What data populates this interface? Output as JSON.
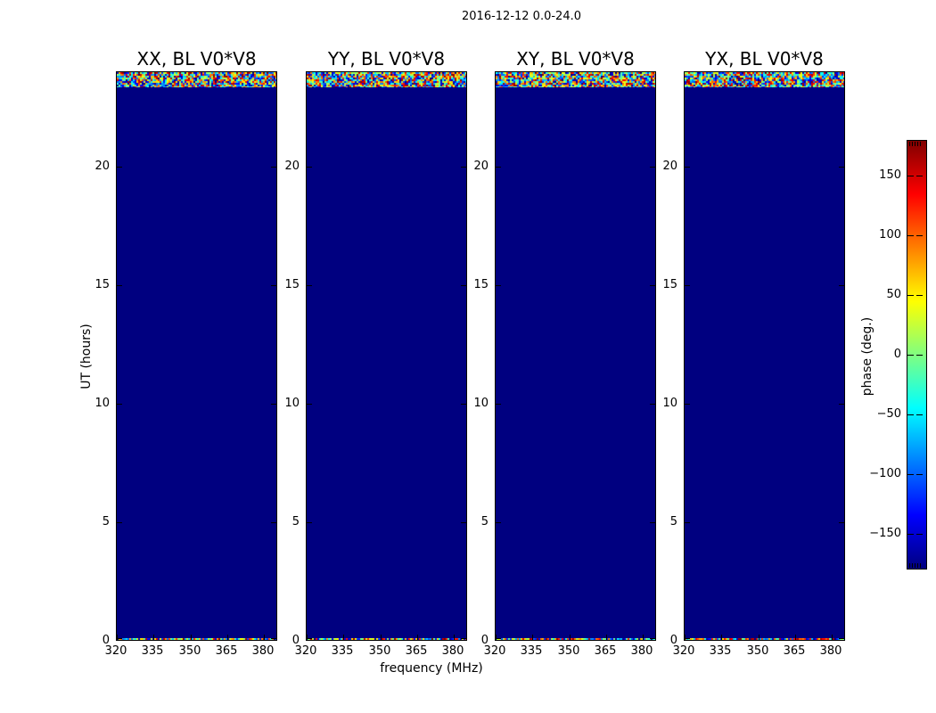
{
  "chart_data": {
    "type": "heatmap",
    "suptitle": "2016-12-12 0.0-24.0",
    "xlabel": "frequency (MHz)",
    "ylabel": "UT (hours)",
    "x_range_mhz": [
      320,
      386
    ],
    "y_range_hours": [
      0.0,
      24.0
    ],
    "xticks": {
      "values": [
        320,
        335,
        350,
        365,
        380
      ],
      "labels": [
        "320",
        "335",
        "350",
        "365",
        "380"
      ]
    },
    "yticks": {
      "values": [
        0,
        5,
        10,
        15,
        20
      ],
      "labels": [
        "0",
        "5",
        "10",
        "15",
        "20"
      ]
    },
    "panels": [
      {
        "key": "XX",
        "title": "XX, BL V0*V8"
      },
      {
        "key": "YY",
        "title": "YY, BL V0*V8"
      },
      {
        "key": "XY",
        "title": "XY, BL V0*V8"
      },
      {
        "key": "YX",
        "title": "YX, BL V0*V8"
      }
    ],
    "colormap": "jet",
    "value_range_deg": [
      -180,
      180
    ],
    "features": {
      "body": "uniform dark navy (colormap minimum, phase ≈ -180 deg)",
      "top_noise_band_hours": [
        23.35,
        24.0
      ],
      "bottom_noise_band_hours": [
        0.0,
        0.08
      ],
      "noise_description": "random phase values spanning full -180..180 jet range"
    },
    "colorbar": {
      "label": "phase (deg.)",
      "range_deg": [
        -180,
        180
      ],
      "ticks": {
        "values": [
          150,
          100,
          50,
          0,
          -50,
          -100,
          -150
        ],
        "labels": [
          "150",
          "100",
          "50",
          "0",
          "−50",
          "−100",
          "−150"
        ]
      }
    }
  },
  "colors": {
    "background": "#ffffff",
    "panel_body": "#000080",
    "axis": "#000000",
    "jet_stops": [
      "#000080",
      "#0000ff",
      "#00ffff",
      "#80ff80",
      "#ffff00",
      "#ff0000",
      "#800000"
    ]
  }
}
